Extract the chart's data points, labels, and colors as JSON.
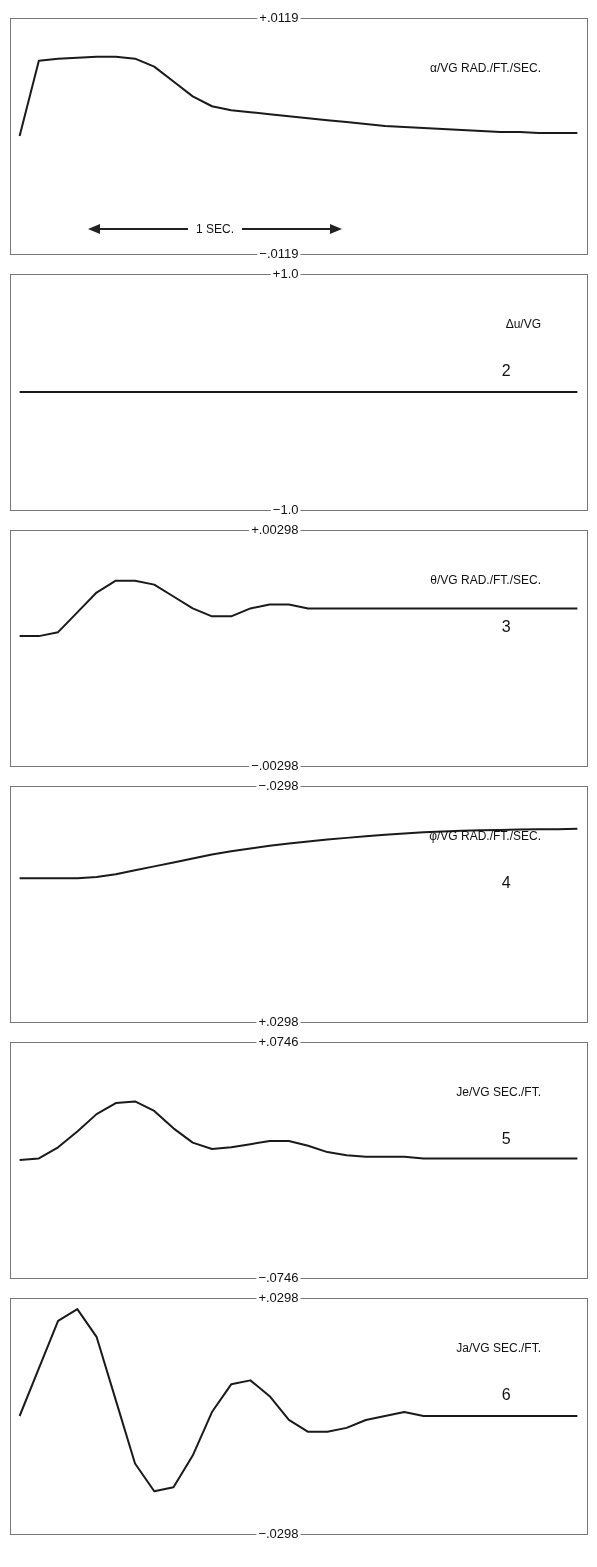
{
  "chart_data": [
    {
      "type": "line",
      "ylabel": "α/VG RAD./FT./SEC.",
      "color": "#1a1a1a",
      "tick_labels": "y",
      "line_style": "solid",
      "categories": [
        null,
        null,
        null,
        null,
        null,
        null,
        null,
        null,
        null,
        null,
        null,
        null,
        null,
        null,
        null,
        null,
        null,
        null,
        null,
        null,
        null,
        null,
        null,
        null,
        null,
        null,
        null,
        null,
        null,
        null
      ],
      "values": [
        0,
        0.0076,
        0.0078,
        0.0079,
        0.008,
        0.008,
        0.0078,
        0.007,
        0.0055,
        0.004,
        0.003,
        0.0026,
        0.0024,
        0.0022,
        0.002,
        0.0018,
        0.0016,
        0.0014,
        0.0012,
        0.001,
        0.0009,
        0.0008,
        0.0007,
        0.0006,
        0.0005,
        0.0004,
        0.0004,
        0.0003,
        0.0003,
        0.0003
      ],
      "ylim": [
        -0.0119,
        0.0119
      ],
      "yticks": [
        {
          "value": 0.0119,
          "label": "+.0119"
        },
        {
          "value": -0.0119,
          "label": "−.0119"
        }
      ],
      "annotations": [
        "1 SEC."
      ]
    },
    {
      "type": "line",
      "ylabel": "Δu/VG",
      "color": "#1a1a1a",
      "tick_labels": "y",
      "line_style": "solid",
      "categories": [
        null,
        null,
        null,
        null,
        null,
        null,
        null,
        null,
        null,
        null,
        null,
        null,
        null,
        null,
        null,
        null,
        null,
        null,
        null,
        null,
        null,
        null,
        null,
        null,
        null,
        null,
        null,
        null,
        null,
        null
      ],
      "values": [
        0,
        0,
        0,
        0,
        0,
        0,
        0,
        0,
        0,
        0,
        0,
        0,
        0,
        0,
        0,
        0,
        0,
        0,
        0,
        0,
        0,
        0,
        0,
        0,
        0,
        0,
        0,
        0,
        0,
        0
      ],
      "ylim": [
        -1.0,
        1.0
      ],
      "yticks": [
        {
          "value": 1.0,
          "label": "+1.0"
        },
        {
          "value": -1.0,
          "label": "−1.0"
        }
      ],
      "annotations": [
        "2"
      ]
    },
    {
      "type": "line",
      "ylabel": "θ/VG RAD./FT./SEC.",
      "color": "#1a1a1a",
      "tick_labels": "y",
      "line_style": "solid",
      "categories": [
        null,
        null,
        null,
        null,
        null,
        null,
        null,
        null,
        null,
        null,
        null,
        null,
        null,
        null,
        null,
        null,
        null,
        null,
        null,
        null,
        null,
        null,
        null,
        null,
        null,
        null,
        null,
        null,
        null,
        null
      ],
      "values": [
        0.0003,
        0.0003,
        0.0004,
        0.0009,
        0.0014,
        0.0017,
        0.0017,
        0.0016,
        0.0013,
        0.001,
        0.0008,
        0.0008,
        0.001,
        0.0011,
        0.0011,
        0.001,
        0.001,
        0.001,
        0.001,
        0.001,
        0.001,
        0.001,
        0.001,
        0.001,
        0.001,
        0.001,
        0.001,
        0.001,
        0.001,
        0.001
      ],
      "ylim": [
        -0.00298,
        0.00298
      ],
      "yticks": [
        {
          "value": 0.00298,
          "label": "+.00298"
        },
        {
          "value": -0.00298,
          "label": "−.00298"
        }
      ],
      "annotations": [
        "3"
      ]
    },
    {
      "type": "line",
      "ylabel": "φ/VG RAD./FT./SEC.",
      "color": "#1a1a1a",
      "tick_labels": "y",
      "line_style": "solid",
      "categories": [
        null,
        null,
        null,
        null,
        null,
        null,
        null,
        null,
        null,
        null,
        null,
        null,
        null,
        null,
        null,
        null,
        null,
        null,
        null,
        null,
        null,
        null,
        null,
        null,
        null,
        null,
        null,
        null,
        null,
        null
      ],
      "values": [
        -0.0065,
        -0.0065,
        -0.0065,
        -0.0065,
        -0.0068,
        -0.0075,
        -0.0085,
        -0.0095,
        -0.0105,
        -0.0115,
        -0.0125,
        -0.0133,
        -0.014,
        -0.0147,
        -0.0153,
        -0.0158,
        -0.0163,
        -0.0167,
        -0.0171,
        -0.0175,
        -0.0178,
        -0.0181,
        -0.0183,
        -0.0185,
        -0.0186,
        -0.0187,
        -0.0188,
        -0.0189,
        -0.0189,
        -0.019
      ],
      "ylim": [
        0.0298,
        -0.0298
      ],
      "yticks": [
        {
          "value": -0.0298,
          "label": "−.0298"
        },
        {
          "value": 0.0298,
          "label": "+.0298"
        }
      ],
      "annotations": [
        "4"
      ]
    },
    {
      "type": "line",
      "ylabel": "Je/VG SEC./FT.",
      "color": "#1a1a1a",
      "tick_labels": "y",
      "line_style": "solid",
      "categories": [
        null,
        null,
        null,
        null,
        null,
        null,
        null,
        null,
        null,
        null,
        null,
        null,
        null,
        null,
        null,
        null,
        null,
        null,
        null,
        null,
        null,
        null,
        null,
        null,
        null,
        null,
        null,
        null,
        null,
        null
      ],
      "values": [
        0,
        0.001,
        0.008,
        0.018,
        0.029,
        0.036,
        0.037,
        0.031,
        0.02,
        0.011,
        0.007,
        0.008,
        0.01,
        0.012,
        0.012,
        0.009,
        0.005,
        0.003,
        0.002,
        0.002,
        0.002,
        0.001,
        0.001,
        0.001,
        0.001,
        0.001,
        0.001,
        0.001,
        0.001,
        0.001
      ],
      "ylim": [
        -0.0746,
        0.0746
      ],
      "yticks": [
        {
          "value": 0.0746,
          "label": "+.0746"
        },
        {
          "value": -0.0746,
          "label": "−.0746"
        }
      ],
      "annotations": [
        "5"
      ]
    },
    {
      "type": "line",
      "ylabel": "Ja/VG SEC./FT.",
      "color": "#1a1a1a",
      "tick_labels": "y",
      "line_style": "solid",
      "categories": [
        null,
        null,
        null,
        null,
        null,
        null,
        null,
        null,
        null,
        null,
        null,
        null,
        null,
        null,
        null,
        null,
        null,
        null,
        null,
        null,
        null,
        null,
        null,
        null,
        null,
        null,
        null,
        null,
        null,
        null
      ],
      "values": [
        0,
        0.012,
        0.024,
        0.027,
        0.02,
        0.004,
        -0.012,
        -0.019,
        -0.018,
        -0.01,
        0.001,
        0.008,
        0.009,
        0.005,
        -0.001,
        -0.004,
        -0.004,
        -0.003,
        -0.001,
        0,
        0.001,
        0,
        0,
        0,
        0,
        0,
        0,
        0,
        0,
        0
      ],
      "ylim": [
        -0.0298,
        0.0298
      ],
      "yticks": [
        {
          "value": 0.0298,
          "label": "+.0298"
        },
        {
          "value": -0.0298,
          "label": "−.0298"
        }
      ],
      "annotations": [
        "6"
      ]
    }
  ]
}
